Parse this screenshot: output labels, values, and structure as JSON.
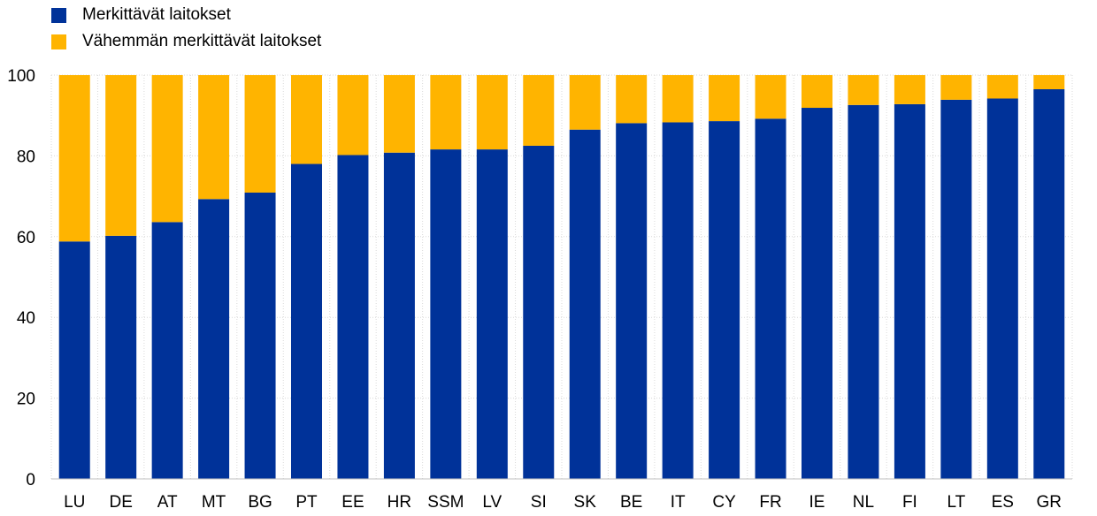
{
  "chart_data": {
    "type": "bar",
    "stacked": true,
    "categories": [
      "LU",
      "DE",
      "AT",
      "MT",
      "BG",
      "PT",
      "EE",
      "HR",
      "SSM",
      "LV",
      "SI",
      "SK",
      "BE",
      "IT",
      "CY",
      "FR",
      "IE",
      "NL",
      "FI",
      "LT",
      "ES",
      "GR"
    ],
    "series": [
      {
        "name": "Merkittävät laitokset",
        "color": "#003299",
        "values": [
          58.8,
          60.2,
          63.6,
          69.3,
          70.9,
          78.0,
          80.2,
          80.8,
          81.6,
          81.6,
          82.5,
          86.5,
          88.1,
          88.3,
          88.6,
          89.2,
          91.9,
          92.6,
          92.8,
          93.9,
          94.2,
          96.5
        ]
      },
      {
        "name": "Vähemmän merkittävät laitokset",
        "color": "#FFB400",
        "values": [
          41.2,
          39.8,
          36.4,
          30.7,
          29.1,
          22.0,
          19.8,
          19.2,
          18.4,
          18.4,
          17.5,
          13.5,
          11.9,
          11.7,
          11.4,
          10.8,
          8.1,
          7.4,
          7.2,
          6.1,
          5.8,
          3.5
        ]
      }
    ],
    "title": "",
    "xlabel": "",
    "ylabel": "",
    "ylim": [
      0,
      100
    ],
    "yticks": [
      0,
      20,
      40,
      60,
      80,
      100
    ],
    "grid": true,
    "legend_position": "top-left"
  }
}
